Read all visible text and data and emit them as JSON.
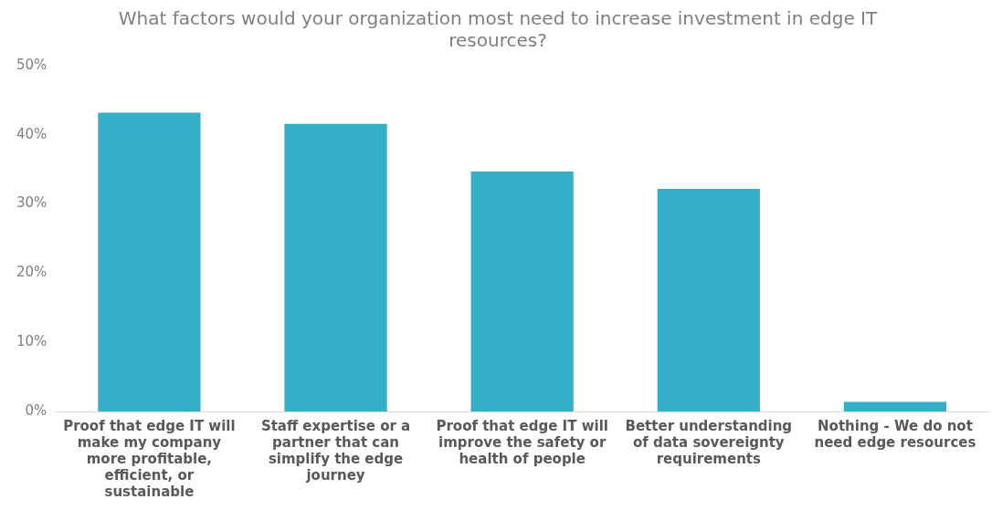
{
  "chart_data": {
    "type": "bar",
    "title": "What factors would your organization most need to increase investment in edge IT resources?",
    "categories": [
      "Proof that edge IT will make my company more profitable, efficient, or sustainable",
      "Staff expertise or a partner that can simplify the edge journey",
      "Proof that edge IT will improve the safety or health of people",
      "Better understanding of data sovereignty requirements",
      "Nothing - We do not need edge resources"
    ],
    "values": [
      43.2,
      41.6,
      34.7,
      32.2,
      1.4
    ],
    "color": "#35aec8",
    "ylim": [
      0,
      50
    ],
    "yticks": [
      {
        "value": 0,
        "label": "0%"
      },
      {
        "value": 10,
        "label": "10%"
      },
      {
        "value": 20,
        "label": "20%"
      },
      {
        "value": 30,
        "label": "30%"
      },
      {
        "value": 40,
        "label": "40%"
      },
      {
        "value": 50,
        "label": "50%"
      }
    ],
    "grid": false,
    "legend": false
  }
}
